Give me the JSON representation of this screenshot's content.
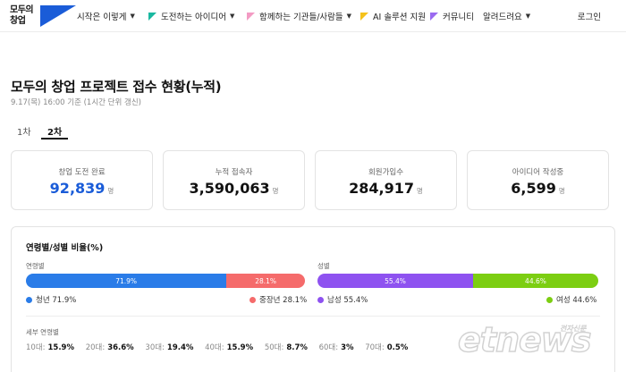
{
  "header": {
    "logo": {
      "line1": "모두의",
      "line2": "창업"
    },
    "nav": [
      {
        "label": "시작은 이렇게",
        "has_chevron": true,
        "flag_color": ""
      },
      {
        "label": "도전하는 아이디어",
        "has_chevron": true,
        "flag_color": "#19b8a0"
      },
      {
        "label": "함께하는 기관들/사람들",
        "has_chevron": true,
        "flag_color": "#f39bc4"
      },
      {
        "label": "AI 솔루션 지원",
        "has_chevron": false,
        "flag_color": "#f5c21b"
      },
      {
        "label": "커뮤니티",
        "has_chevron": false,
        "flag_color": "#9a6af0"
      },
      {
        "label": "알려드려요",
        "has_chevron": true,
        "flag_color": ""
      }
    ],
    "login_label": "로그인"
  },
  "page": {
    "title": "모두의 창업 프로젝트 접수 현황(누적)",
    "subtitle": "9.17(목) 16:00 기준 (1시간 단위 갱신)",
    "tabs": [
      {
        "label": "1차",
        "active": false
      },
      {
        "label": "2차",
        "active": true
      }
    ]
  },
  "stats": [
    {
      "label": "창업 도전 완료",
      "value": "92,839",
      "unit": "명",
      "highlight": true
    },
    {
      "label": "누적 접속자",
      "value": "3,590,063",
      "unit": "명",
      "highlight": false
    },
    {
      "label": "회원가입수",
      "value": "284,917",
      "unit": "명",
      "highlight": false
    },
    {
      "label": "아이디어 작성중",
      "value": "6,599",
      "unit": "명",
      "highlight": false
    }
  ],
  "ratio": {
    "title": "연령별/성별 비율(%)",
    "age_section": {
      "label": "연령별",
      "segments": [
        {
          "name": "청년",
          "value": 71.9,
          "bar_label": "71.9%",
          "legend": "청년 71.9%",
          "color": "#2a7ce8"
        },
        {
          "name": "중장년",
          "value": 28.1,
          "bar_label": "28.1%",
          "legend": "중장년 28.1%",
          "color": "#f56b6b"
        }
      ]
    },
    "gender_section": {
      "label": "성별",
      "segments": [
        {
          "name": "남성",
          "value": 55.4,
          "bar_label": "55.4%",
          "legend": "남성 55.4%",
          "color": "#8e52f0"
        },
        {
          "name": "여성",
          "value": 44.6,
          "bar_label": "44.6%",
          "legend": "여성 44.6%",
          "color": "#7cce12"
        }
      ]
    },
    "detail": {
      "label": "세부 연령별",
      "ages": [
        {
          "k": "10대:",
          "v": "15.9%"
        },
        {
          "k": "20대:",
          "v": "36.6%"
        },
        {
          "k": "30대:",
          "v": "19.4%"
        },
        {
          "k": "40대:",
          "v": "15.9%"
        },
        {
          "k": "50대:",
          "v": "8.7%"
        },
        {
          "k": "60대:",
          "v": "3%"
        },
        {
          "k": "70대:",
          "v": "0.5%"
        }
      ]
    }
  },
  "watermark": {
    "text": "etnews",
    "sub": "전자신문"
  }
}
